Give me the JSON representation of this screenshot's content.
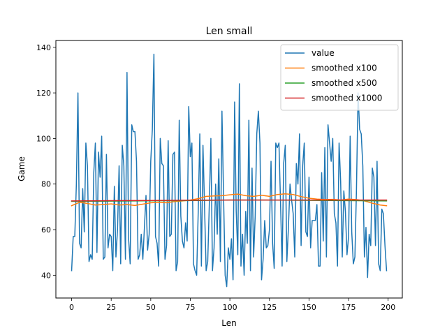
{
  "chart_data": {
    "type": "line",
    "title": "Len small",
    "xlabel": "Len",
    "ylabel": "Game",
    "xlim": [
      -9.95,
      208.95
    ],
    "ylim": [
      30,
      143
    ],
    "xticks": [
      0,
      25,
      50,
      75,
      100,
      125,
      150,
      175,
      200
    ],
    "yticks": [
      40,
      60,
      80,
      100,
      120,
      140
    ],
    "grid": false,
    "legend_position": "top-right",
    "series": [
      {
        "name": "value",
        "color": "#1f77b4",
        "x": [
          0,
          1,
          2,
          3,
          4,
          5,
          6,
          7,
          8,
          9,
          10,
          11,
          12,
          13,
          14,
          15,
          16,
          17,
          18,
          19,
          20,
          21,
          22,
          23,
          24,
          25,
          26,
          27,
          28,
          29,
          30,
          31,
          32,
          33,
          34,
          35,
          36,
          37,
          38,
          39,
          40,
          41,
          42,
          43,
          44,
          45,
          46,
          47,
          48,
          49,
          50,
          51,
          52,
          53,
          54,
          55,
          56,
          57,
          58,
          59,
          60,
          61,
          62,
          63,
          64,
          65,
          66,
          67,
          68,
          69,
          70,
          71,
          72,
          73,
          74,
          75,
          76,
          77,
          78,
          79,
          80,
          81,
          82,
          83,
          84,
          85,
          86,
          87,
          88,
          89,
          90,
          91,
          92,
          93,
          94,
          95,
          96,
          97,
          98,
          99,
          100,
          101,
          102,
          103,
          104,
          105,
          106,
          107,
          108,
          109,
          110,
          111,
          112,
          113,
          114,
          115,
          116,
          117,
          118,
          119,
          120,
          121,
          122,
          123,
          124,
          125,
          126,
          127,
          128,
          129,
          130,
          131,
          132,
          133,
          134,
          135,
          136,
          137,
          138,
          139,
          140,
          141,
          142,
          143,
          144,
          145,
          146,
          147,
          148,
          149,
          150,
          151,
          152,
          153,
          154,
          155,
          156,
          157,
          158,
          159,
          160,
          161,
          162,
          163,
          164,
          165,
          166,
          167,
          168,
          169,
          170,
          171,
          172,
          173,
          174,
          175,
          176,
          177,
          178,
          179,
          180,
          181,
          182,
          183,
          184,
          185,
          186,
          187,
          188,
          189,
          190,
          191,
          192,
          193,
          194,
          195,
          196,
          197,
          198,
          199
        ],
        "values": [
          42,
          57,
          57,
          80,
          120,
          54,
          52,
          78,
          59,
          98,
          88,
          46,
          49,
          47,
          85,
          98,
          50,
          94,
          83,
          101,
          47,
          48,
          93,
          52,
          58,
          57,
          42,
          79,
          48,
          60,
          88,
          45,
          97,
          88,
          47,
          129,
          56,
          45,
          106,
          103,
          103,
          90,
          47,
          49,
          58,
          47,
          61,
          75,
          51,
          58,
          90,
          104,
          137,
          57,
          54,
          44,
          100,
          89,
          88,
          47,
          53,
          99,
          57,
          58,
          93,
          94,
          42,
          46,
          108,
          66,
          55,
          52,
          63,
          55,
          114,
          92,
          98,
          45,
          42,
          40,
          68,
          102,
          44,
          97,
          70,
          42,
          46,
          71,
          100,
          42,
          52,
          80,
          58,
          91,
          46,
          112,
          75,
          40,
          35,
          52,
          47,
          56,
          38,
          116,
          68,
          49,
          124,
          44,
          58,
          40,
          68,
          54,
          108,
          42,
          87,
          48,
          66,
          102,
          112,
          98,
          38,
          47,
          64,
          52,
          53,
          60,
          90,
          54,
          43,
          98,
          96,
          98,
          72,
          44,
          89,
          97,
          46,
          61,
          80,
          73,
          67,
          48,
          89,
          80,
          102,
          53,
          88,
          98,
          59,
          57,
          83,
          52,
          64,
          64,
          64,
          71,
          44,
          44,
          85,
          55,
          96,
          48,
          106,
          98,
          90,
          100,
          67,
          63,
          44,
          98,
          81,
          48,
          77,
          68,
          49,
          57,
          101,
          59,
          45,
          48,
          78,
          120,
          104,
          102,
          88,
          48,
          61,
          39,
          58,
          53,
          87,
          83,
          53,
          90,
          45,
          42,
          69,
          67,
          53,
          42
        ],
        "note": ""
      },
      {
        "name": "smoothed x100",
        "color": "#ff7f0e",
        "x": [
          0,
          5,
          10,
          15,
          20,
          25,
          30,
          35,
          40,
          45,
          50,
          55,
          60,
          65,
          70,
          75,
          80,
          85,
          90,
          95,
          100,
          105,
          110,
          115,
          120,
          125,
          130,
          135,
          140,
          145,
          150,
          155,
          160,
          165,
          170,
          175,
          180,
          185,
          190,
          195,
          199
        ],
        "values": [
          70.5,
          72.0,
          71.5,
          70.8,
          71.0,
          71.3,
          70.8,
          71.0,
          70.6,
          71.2,
          71.8,
          72.0,
          71.8,
          72.3,
          72.6,
          73.0,
          73.6,
          74.6,
          74.8,
          74.9,
          75.3,
          75.6,
          74.9,
          74.6,
          75.1,
          74.6,
          75.4,
          75.7,
          75.4,
          74.5,
          73.8,
          73.4,
          73.2,
          73.3,
          73.0,
          73.4,
          73.2,
          72.6,
          71.6,
          70.8,
          70.5
        ]
      },
      {
        "name": "smoothed x500",
        "color": "#2ca02c",
        "x": [
          0,
          20,
          40,
          60,
          80,
          100,
          120,
          140,
          160,
          180,
          199
        ],
        "values": [
          72.4,
          72.5,
          72.6,
          72.7,
          72.8,
          73.0,
          73.0,
          72.9,
          72.8,
          72.7,
          72.6
        ]
      },
      {
        "name": "smoothed x1000",
        "color": "#d62728",
        "x": [
          0,
          25,
          50,
          75,
          100,
          125,
          150,
          175,
          199
        ],
        "values": [
          72.6,
          72.7,
          72.8,
          72.9,
          73.0,
          73.0,
          73.0,
          73.0,
          73.0
        ]
      }
    ]
  }
}
